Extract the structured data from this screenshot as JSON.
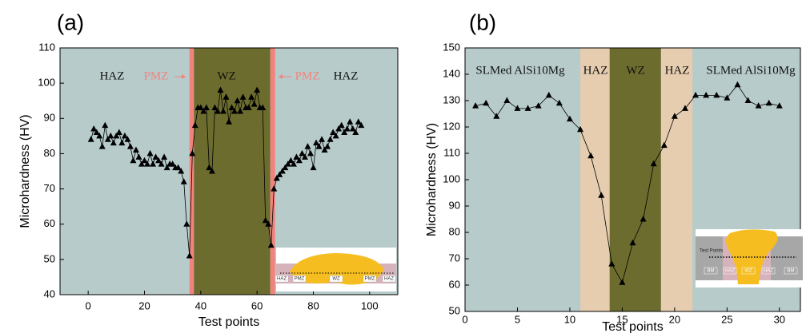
{
  "chart_data": [
    {
      "type": "line",
      "panel_label": "(a)",
      "xlabel": "Test points",
      "ylabel": "Microhardness (HV)",
      "xlim": [
        -10,
        110
      ],
      "ylim": [
        40,
        110
      ],
      "xticks": [
        0,
        20,
        40,
        60,
        80,
        100
      ],
      "yticks": [
        40,
        50,
        60,
        70,
        80,
        90,
        100,
        110
      ],
      "background": "#b7cbcb",
      "color": "#000000",
      "bands": [
        {
          "from": 36,
          "to": 37.6,
          "color": "#f2837c"
        },
        {
          "from": 37.6,
          "to": 64.7,
          "color": "#6c6c2e"
        },
        {
          "from": 64.7,
          "to": 66.4,
          "color": "#f2837c"
        }
      ],
      "annotations": [
        {
          "text": "HAZ",
          "color": "#111111"
        },
        {
          "text": "PMZ",
          "color": "#f2837c"
        },
        {
          "text": "WZ",
          "color": "#111111"
        },
        {
          "text": "PMZ",
          "color": "#f2837c"
        },
        {
          "text": "HAZ",
          "color": "#111111"
        }
      ],
      "inset_labels": [
        "HAZ",
        "PMZ",
        "WZ",
        "PMZ",
        "HAZ"
      ],
      "x": [
        1,
        2,
        3,
        4,
        5,
        6,
        7,
        8,
        9,
        10,
        11,
        12,
        13,
        14,
        15,
        16,
        17,
        18,
        19,
        20,
        21,
        22,
        23,
        24,
        25,
        26,
        27,
        28,
        29,
        30,
        31,
        32,
        33,
        34,
        35,
        36,
        37,
        38,
        39,
        40,
        41,
        42,
        43,
        44,
        45,
        46,
        47,
        48,
        49,
        50,
        51,
        52,
        53,
        54,
        55,
        56,
        57,
        58,
        59,
        60,
        61,
        62,
        63,
        64,
        65,
        66,
        67,
        68,
        69,
        70,
        71,
        72,
        73,
        74,
        75,
        76,
        77,
        78,
        79,
        80,
        81,
        82,
        83,
        84,
        85,
        86,
        87,
        88,
        89,
        90,
        91,
        92,
        93,
        94,
        95,
        96,
        97
      ],
      "values": [
        84,
        87,
        86,
        85,
        82,
        88,
        84,
        85,
        83,
        85,
        86,
        83,
        85,
        84,
        82,
        78,
        81,
        79,
        77,
        78,
        77,
        80,
        77,
        79,
        78,
        77,
        79,
        76,
        77,
        77,
        76,
        76,
        75,
        72,
        60,
        51,
        80,
        88,
        93,
        93,
        92,
        93,
        76,
        75,
        93,
        92,
        98,
        92,
        96,
        89,
        93,
        92,
        95,
        92,
        96,
        93,
        93,
        96,
        94,
        98,
        93,
        93,
        61,
        60,
        54,
        70,
        73,
        74,
        75,
        76,
        77,
        78,
        77,
        79,
        78,
        80,
        79,
        82,
        80,
        76,
        83,
        82,
        84,
        81,
        82,
        84,
        86,
        85,
        87,
        88,
        86,
        87,
        89,
        87,
        86,
        89,
        88
      ]
    },
    {
      "type": "line",
      "panel_label": "(b)",
      "xlabel": "Test points",
      "ylabel": "Microhardness (HV)",
      "xlim": [
        0,
        32
      ],
      "ylim": [
        50,
        150
      ],
      "xticks": [
        0,
        5,
        10,
        15,
        20,
        25,
        30
      ],
      "yticks": [
        50,
        60,
        70,
        80,
        90,
        100,
        110,
        120,
        130,
        140,
        150
      ],
      "background": "#b7cbcb",
      "color": "#000000",
      "bands": [
        {
          "from": 11,
          "to": 13.8,
          "color": "#e6cdb0"
        },
        {
          "from": 13.8,
          "to": 18.7,
          "color": "#6c6c2e"
        },
        {
          "from": 18.7,
          "to": 21.7,
          "color": "#e6cdb0"
        }
      ],
      "annotations": [
        {
          "text": "SLMed AlSi10Mg",
          "color": "#111111"
        },
        {
          "text": "HAZ",
          "color": "#111111"
        },
        {
          "text": "WZ",
          "color": "#111111"
        },
        {
          "text": "HAZ",
          "color": "#111111"
        },
        {
          "text": "SLMed AlSi10Mg",
          "color": "#111111"
        }
      ],
      "inset_labels": [
        "Test Points",
        "BM",
        "HAZ",
        "WZ",
        "HAZ",
        "BM"
      ],
      "x": [
        1,
        2,
        3,
        4,
        5,
        6,
        7,
        8,
        9,
        10,
        11,
        12,
        13,
        14,
        15,
        16,
        17,
        18,
        19,
        20,
        21,
        22,
        23,
        24,
        25,
        26,
        27,
        28,
        29,
        30
      ],
      "values": [
        128,
        129,
        124,
        130,
        127,
        127,
        128,
        132,
        129,
        123,
        119,
        109,
        94,
        68,
        61,
        76,
        85,
        106,
        113,
        124,
        127,
        132,
        132,
        132,
        131,
        136,
        130,
        128,
        129,
        128
      ]
    }
  ]
}
